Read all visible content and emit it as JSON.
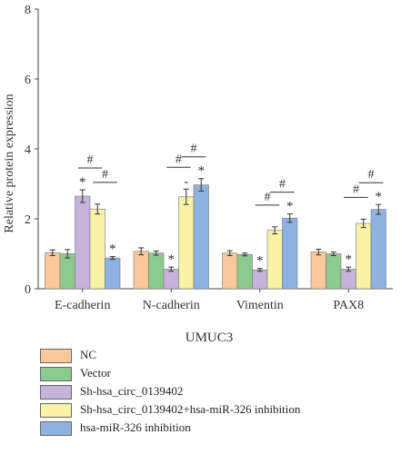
{
  "chart_data": {
    "type": "bar",
    "xlabel": "UMUC3",
    "ylabel": "Relative protein expression",
    "ylim": [
      0,
      8
    ],
    "yticks": [
      0,
      2,
      4,
      6,
      8
    ],
    "categories": [
      "E-cadherin",
      "N-cadherin",
      "Vimentin",
      "PAX8"
    ],
    "series": [
      {
        "name": "NC",
        "color": "#FBC89A",
        "values": [
          1.03,
          1.07,
          1.02,
          1.05
        ],
        "errors": [
          0.08,
          0.1,
          0.07,
          0.08
        ],
        "marks": [
          "",
          "",
          "",
          ""
        ]
      },
      {
        "name": "Vector",
        "color": "#8CCB8E",
        "values": [
          1.0,
          1.02,
          0.98,
          1.0
        ],
        "errors": [
          0.12,
          0.06,
          0.04,
          0.05
        ],
        "marks": [
          "",
          "",
          "",
          ""
        ]
      },
      {
        "name": "Sh-hsa_circ_0139402",
        "color": "#C5B3DA",
        "values": [
          2.65,
          0.56,
          0.54,
          0.56
        ],
        "errors": [
          0.18,
          0.06,
          0.04,
          0.06
        ],
        "marks": [
          "*",
          "*",
          "*",
          "*"
        ]
      },
      {
        "name": "Sh-hsa_circ_0139402+hsa-miR-326 inhibition",
        "color": "#F8F3A6",
        "values": [
          2.28,
          2.63,
          1.67,
          1.87
        ],
        "errors": [
          0.14,
          0.22,
          0.1,
          0.12
        ],
        "marks": [
          "",
          "-",
          "",
          ""
        ]
      },
      {
        "name": "hsa-miR-326 inhibition",
        "color": "#8EB2E2",
        "values": [
          0.88,
          2.97,
          2.02,
          2.27
        ],
        "errors": [
          0.04,
          0.18,
          0.12,
          0.14
        ],
        "marks": [
          "*",
          "*",
          "*",
          "*"
        ]
      }
    ],
    "comparison_marks": [
      {
        "category": 0,
        "from_series": 2,
        "to_series": 3,
        "symbol": "#"
      },
      {
        "category": 0,
        "from_series": 3,
        "to_series": 4,
        "symbol": "#"
      },
      {
        "category": 1,
        "from_series": 2,
        "to_series": 3,
        "symbol": "#"
      },
      {
        "category": 1,
        "from_series": 3,
        "to_series": 4,
        "symbol": "#"
      },
      {
        "category": 2,
        "from_series": 2,
        "to_series": 3,
        "symbol": "#"
      },
      {
        "category": 2,
        "from_series": 3,
        "to_series": 4,
        "symbol": "#"
      },
      {
        "category": 3,
        "from_series": 2,
        "to_series": 3,
        "symbol": "#"
      },
      {
        "category": 3,
        "from_series": 3,
        "to_series": 4,
        "symbol": "#"
      }
    ],
    "grid": false,
    "legend_position": "bottom-left"
  }
}
